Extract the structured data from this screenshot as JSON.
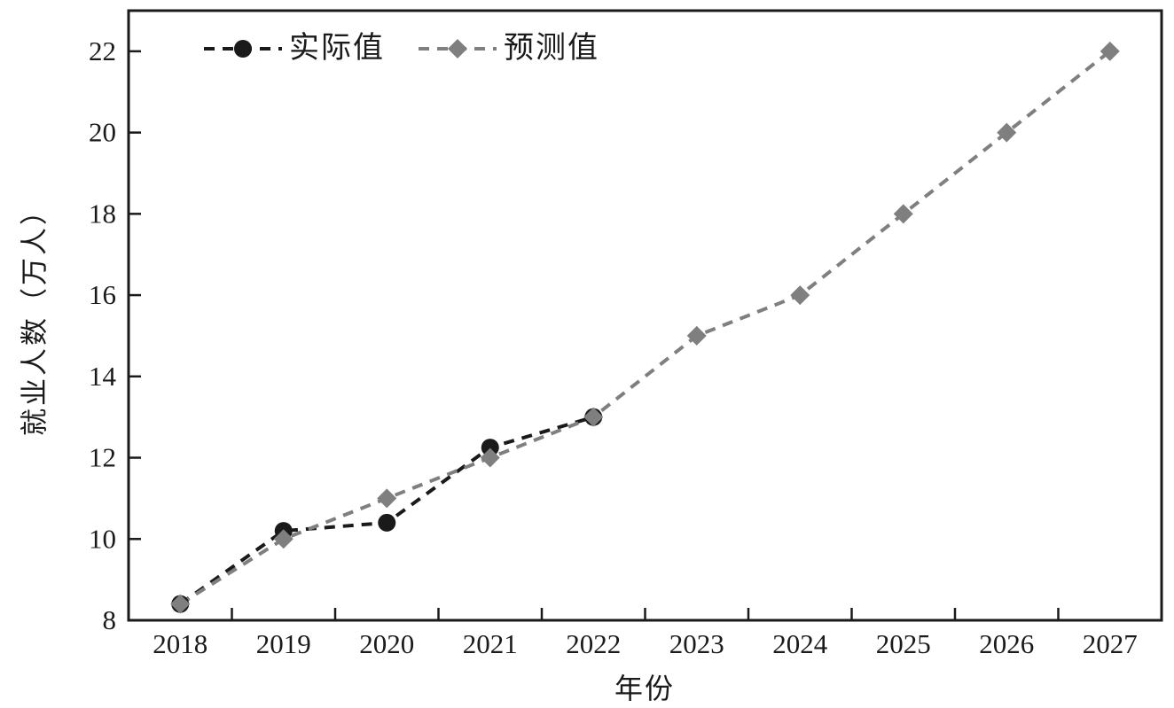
{
  "figure": {
    "background": "#ffffff",
    "axis_color": "#1a1a1a"
  },
  "chart_data": {
    "type": "line",
    "title": "",
    "xlabel": "年份",
    "ylabel": "就业人数（万人）",
    "categories": [
      "2018",
      "2019",
      "2020",
      "2021",
      "2022",
      "2023",
      "2024",
      "2025",
      "2026",
      "2027"
    ],
    "series": [
      {
        "name": "实际值",
        "marker": "circle",
        "color": "#1a1a1a",
        "line_style": "dashed",
        "values": [
          8.4,
          10.2,
          10.4,
          12.25,
          13,
          null,
          null,
          null,
          null,
          null
        ]
      },
      {
        "name": "预测值",
        "marker": "diamond",
        "color": "#7f7f7f",
        "line_style": "dashed",
        "values": [
          8.4,
          10,
          11,
          12,
          13,
          15,
          16,
          18,
          20,
          22
        ]
      }
    ],
    "ylim": [
      8,
      23
    ],
    "yticks": [
      8,
      10,
      12,
      14,
      16,
      18,
      20,
      22
    ],
    "grid": false,
    "legend_position": "top-left-inside"
  }
}
